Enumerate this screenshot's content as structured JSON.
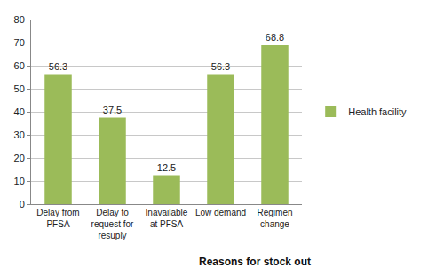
{
  "chart_data": {
    "type": "bar",
    "x_label": "Reasons for stock out",
    "categories": [
      "Delay from PFSA",
      "Delay to request for resuply",
      "Inavailable at PFSA",
      "Low demand",
      "Regimen change"
    ],
    "series": [
      {
        "name": "Health facility",
        "color": "#9bbb59",
        "values": [
          56.3,
          37.5,
          12.5,
          56.3,
          68.8
        ]
      }
    ],
    "ylim": [
      0,
      80
    ],
    "yticks": [
      0,
      10,
      20,
      30,
      40,
      50,
      60,
      70,
      80
    ],
    "grid": true,
    "legend": "right",
    "data_labels": true
  }
}
